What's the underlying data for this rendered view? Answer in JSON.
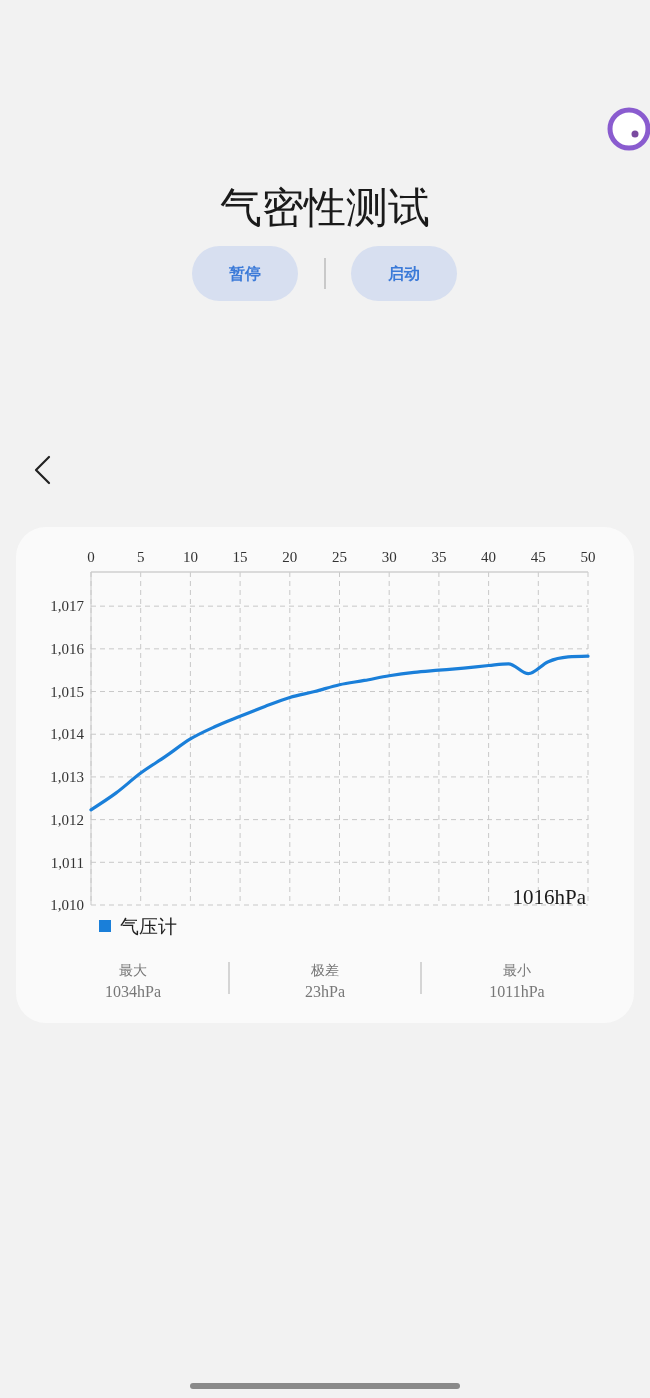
{
  "chart_data": {
    "type": "line",
    "title": "气密性测试",
    "xlim": [
      0,
      50
    ],
    "xticks": [
      0,
      5,
      10,
      15,
      20,
      25,
      30,
      35,
      40,
      45,
      50
    ],
    "ylim": [
      1010,
      1017.8
    ],
    "yticks": [
      {
        "value": 1010,
        "label": "1,010"
      },
      {
        "value": 1011,
        "label": "1,011"
      },
      {
        "value": 1012,
        "label": "1,012"
      },
      {
        "value": 1013,
        "label": "1,013"
      },
      {
        "value": 1014,
        "label": "1,014"
      },
      {
        "value": 1015,
        "label": "1,015"
      },
      {
        "value": 1016,
        "label": "1,016"
      },
      {
        "value": 1017,
        "label": "1,017"
      }
    ],
    "grid": true,
    "legend": "bottom left",
    "line_style": "solid",
    "series": [
      {
        "name": "气压计",
        "color": "#1a7fd9",
        "x": [
          0,
          2.5,
          5,
          7.5,
          10,
          12.5,
          15,
          17.5,
          20,
          22.5,
          25,
          27.5,
          30,
          32.5,
          35,
          37.5,
          40,
          42,
          44,
          46,
          48,
          50
        ],
        "values": [
          1012.23,
          1012.62,
          1013.09,
          1013.48,
          1013.89,
          1014.18,
          1014.42,
          1014.65,
          1014.86,
          1015.0,
          1015.16,
          1015.26,
          1015.37,
          1015.45,
          1015.5,
          1015.55,
          1015.61,
          1015.65,
          1015.42,
          1015.7,
          1015.81,
          1015.83
        ]
      }
    ],
    "annotations": [
      "暂停",
      "启动",
      "1016hPa",
      "最大",
      "1034hPa",
      "极差",
      "23hPa",
      "最小",
      "1011hPa"
    ]
  }
}
